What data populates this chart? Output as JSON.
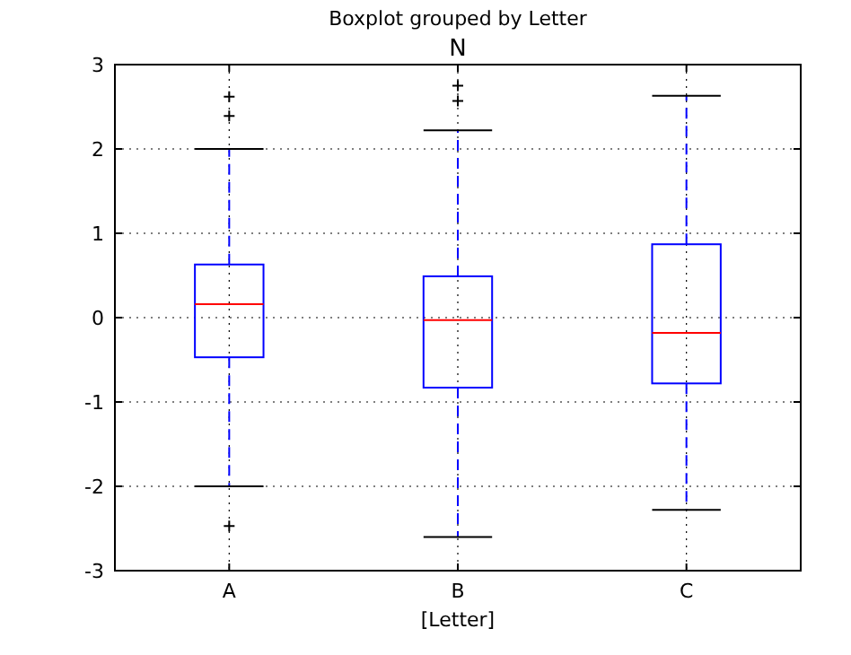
{
  "chart_data": {
    "type": "box",
    "title": "Boxplot grouped by Letter",
    "subtitle": "N",
    "xlabel": "[Letter]",
    "categories": [
      "A",
      "B",
      "C"
    ],
    "boxes": [
      {
        "low": -2.0,
        "q1": -0.47,
        "median": 0.16,
        "q3": 0.63,
        "high": 2.0,
        "outliers": [
          2.62,
          2.39,
          -2.47
        ]
      },
      {
        "low": -2.6,
        "q1": -0.83,
        "median": -0.03,
        "q3": 0.49,
        "high": 2.22,
        "outliers": [
          2.75,
          2.57
        ]
      },
      {
        "low": -2.28,
        "q1": -0.78,
        "median": -0.18,
        "q3": 0.87,
        "high": 2.63
      }
    ],
    "color": "#0000ff",
    "ylim": [
      -3,
      3
    ],
    "yticks": [
      -3,
      -2,
      -1,
      0,
      1,
      2,
      3
    ],
    "grid": true
  }
}
